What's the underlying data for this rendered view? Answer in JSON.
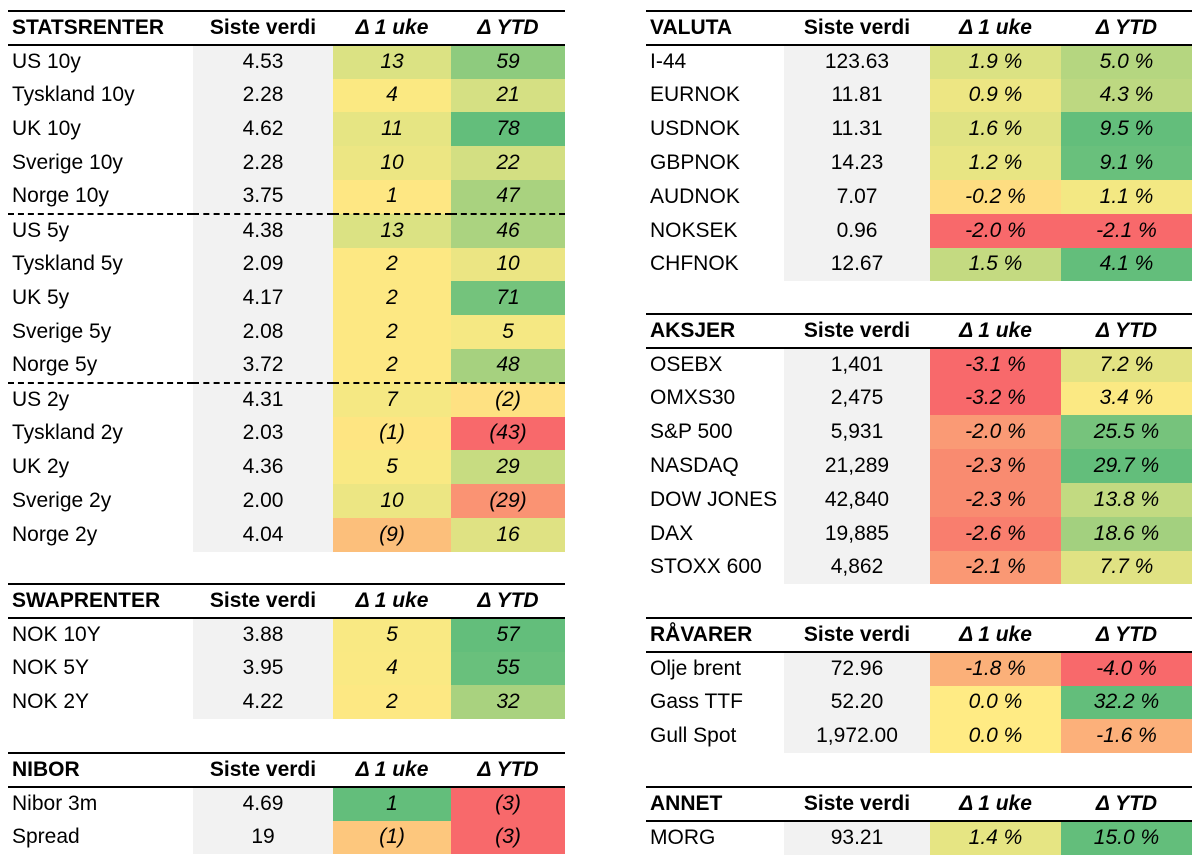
{
  "columns": {
    "value": "Siste verdi",
    "week": "Δ 1 uke",
    "ytd": "Δ YTD"
  },
  "statsrenter": {
    "title": "STATSRENTER",
    "rows": [
      {
        "name": "US 10y",
        "value": "4.53",
        "week": "13",
        "ytd": "59",
        "week_color": "#dbe283",
        "ytd_color": "#8ecb7e"
      },
      {
        "name": "Tyskland 10y",
        "value": "2.28",
        "week": "4",
        "ytd": "21",
        "week_color": "#fbe982",
        "ytd_color": "#d5e083"
      },
      {
        "name": "UK 10y",
        "value": "4.62",
        "week": "11",
        "ytd": "78",
        "week_color": "#e6e583",
        "ytd_color": "#63be7b"
      },
      {
        "name": "Sverige 10y",
        "value": "2.28",
        "week": "10",
        "ytd": "22",
        "week_color": "#ece683",
        "ytd_color": "#d3df82"
      },
      {
        "name": "Norge 10y",
        "value": "3.75",
        "week": "1",
        "ytd": "47",
        "week_color": "#fee783",
        "ytd_color": "#a9d27f"
      },
      {
        "name": "US 5y",
        "value": "4.38",
        "week": "13",
        "ytd": "46",
        "week_color": "#dbe283",
        "ytd_color": "#abd380"
      },
      {
        "name": "Tyskland 5y",
        "value": "2.09",
        "week": "2",
        "ytd": "10",
        "week_color": "#fde883",
        "ytd_color": "#ebe583"
      },
      {
        "name": "UK 5y",
        "value": "4.17",
        "week": "2",
        "ytd": "71",
        "week_color": "#fde883",
        "ytd_color": "#74c37c"
      },
      {
        "name": "Sverige 5y",
        "value": "2.08",
        "week": "2",
        "ytd": "5",
        "week_color": "#fde883",
        "ytd_color": "#f5e883"
      },
      {
        "name": "Norge 5y",
        "value": "3.72",
        "week": "2",
        "ytd": "48",
        "week_color": "#fde883",
        "ytd_color": "#a6d17f"
      },
      {
        "name": "US 2y",
        "value": "4.31",
        "week": "7",
        "ytd": "(2)",
        "week_color": "#f5e883",
        "ytd_color": "#fee182"
      },
      {
        "name": "Tyskland 2y",
        "value": "2.03",
        "week": "(1)",
        "ytd": "(43)",
        "week_color": "#fee582",
        "ytd_color": "#f8696b"
      },
      {
        "name": "UK 2y",
        "value": "4.36",
        "week": "5",
        "ytd": "29",
        "week_color": "#f9e983",
        "ytd_color": "#c7dc81"
      },
      {
        "name": "Sverige 2y",
        "value": "2.00",
        "week": "10",
        "ytd": "(29)",
        "week_color": "#ece683",
        "ytd_color": "#fa9373"
      },
      {
        "name": "Norge 2y",
        "value": "4.04",
        "week": "(9)",
        "ytd": "16",
        "week_color": "#fcbf7b",
        "ytd_color": "#dfe283"
      }
    ],
    "separators_after": [
      4,
      9
    ]
  },
  "swaprenter": {
    "title": "SWAPRENTER",
    "rows": [
      {
        "name": "NOK 10Y",
        "value": "3.88",
        "week": "5",
        "ytd": "57",
        "week_color": "#f9e983",
        "ytd_color": "#63be7b"
      },
      {
        "name": "NOK 5Y",
        "value": "3.95",
        "week": "4",
        "ytd": "55",
        "week_color": "#fae983",
        "ytd_color": "#69c07c"
      },
      {
        "name": "NOK 2Y",
        "value": "4.22",
        "week": "2",
        "ytd": "32",
        "week_color": "#fde883",
        "ytd_color": "#a9d27f"
      }
    ]
  },
  "nibor": {
    "title": "NIBOR",
    "rows": [
      {
        "name": "Nibor 3m",
        "value": "4.69",
        "week": "1",
        "ytd": "(3)",
        "week_color": "#63be7b",
        "ytd_color": "#f8696b"
      },
      {
        "name": "Spread",
        "value": "19",
        "week": "(1)",
        "ytd": "(3)",
        "week_color": "#fdc77d",
        "ytd_color": "#f8696b"
      }
    ]
  },
  "valuta": {
    "title": "VALUTA",
    "rows": [
      {
        "name": "I-44",
        "value": "123.63",
        "week": "1.9 %",
        "ytd": "5.0 %",
        "week_color": "#dbe283",
        "ytd_color": "#b5d680"
      },
      {
        "name": "EURNOK",
        "value": "11.81",
        "week": "0.9 %",
        "ytd": "4.3 %",
        "week_color": "#ede683",
        "ytd_color": "#bdd881"
      },
      {
        "name": "USDNOK",
        "value": "11.31",
        "week": "1.6 %",
        "ytd": "9.5 %",
        "week_color": "#e0e383",
        "ytd_color": "#63be7b"
      },
      {
        "name": "GBPNOK",
        "value": "14.23",
        "week": "1.2 %",
        "ytd": "9.1 %",
        "week_color": "#e8e583",
        "ytd_color": "#69c07c"
      },
      {
        "name": "AUDNOK",
        "value": "7.07",
        "week": "-0.2 %",
        "ytd": "1.1 %",
        "week_color": "#fedd81",
        "ytd_color": "#f3e883"
      },
      {
        "name": "NOKSEK",
        "value": "0.96",
        "week": "-2.0 %",
        "ytd": "-2.1 %",
        "week_color": "#f8696b",
        "ytd_color": "#f8696b"
      },
      {
        "name": "CHFNOK",
        "value": "12.67",
        "week": "1.5 %",
        "ytd": "4.1 %",
        "week_color": "#c4da81",
        "ytd_color": "#63be7b"
      }
    ]
  },
  "aksjer": {
    "title": "AKSJER",
    "rows": [
      {
        "name": "OSEBX",
        "value": "1,401",
        "week": "-3.1 %",
        "ytd": "7.2 %",
        "week_color": "#f8696b",
        "ytd_color": "#e3e383"
      },
      {
        "name": "OMXS30",
        "value": "2,475",
        "week": "-3.2 %",
        "ytd": "3.4 %",
        "week_color": "#f8696b",
        "ytd_color": "#fbe983"
      },
      {
        "name": "S&P 500",
        "value": "5,931",
        "week": "-2.0 %",
        "ytd": "25.5 %",
        "week_color": "#fa9a75",
        "ytd_color": "#76c37c"
      },
      {
        "name": "NASDAQ",
        "value": "21,289",
        "week": "-2.3 %",
        "ytd": "29.7 %",
        "week_color": "#f98b70",
        "ytd_color": "#63be7b"
      },
      {
        "name": "DOW JONES",
        "value": "42,840",
        "week": "-2.3 %",
        "ytd": "13.8 %",
        "week_color": "#f98b70",
        "ytd_color": "#c2da81"
      },
      {
        "name": "DAX",
        "value": "19,885",
        "week": "-2.6 %",
        "ytd": "18.6 %",
        "week_color": "#f97e6e",
        "ytd_color": "#a3d07f"
      },
      {
        "name": "STOXX 600",
        "value": "4,862",
        "week": "-2.1 %",
        "ytd": "7.7 %",
        "week_color": "#fa9874",
        "ytd_color": "#e0e283"
      }
    ]
  },
  "ravarer": {
    "title": "RÅVARER",
    "rows": [
      {
        "name": "Olje brent",
        "value": "72.96",
        "week": "-1.8 %",
        "ytd": "-4.0 %",
        "week_color": "#fbb079",
        "ytd_color": "#f8696b"
      },
      {
        "name": "Gass TTF",
        "value": "52.20",
        "week": "0.0 %",
        "ytd": "32.2 %",
        "week_color": "#ffeb84",
        "ytd_color": "#63be7b"
      },
      {
        "name": "Gull Spot",
        "value": "1,972.00",
        "week": "0.0 %",
        "ytd": "-1.6 %",
        "week_color": "#ffeb84",
        "ytd_color": "#fcb07a"
      }
    ]
  },
  "annet": {
    "title": "ANNET",
    "rows": [
      {
        "name": "MORG",
        "value": "93.21",
        "week": "1.4 %",
        "ytd": "15.0 %",
        "week_color": "#e6e583",
        "ytd_color": "#63be7b"
      }
    ]
  }
}
